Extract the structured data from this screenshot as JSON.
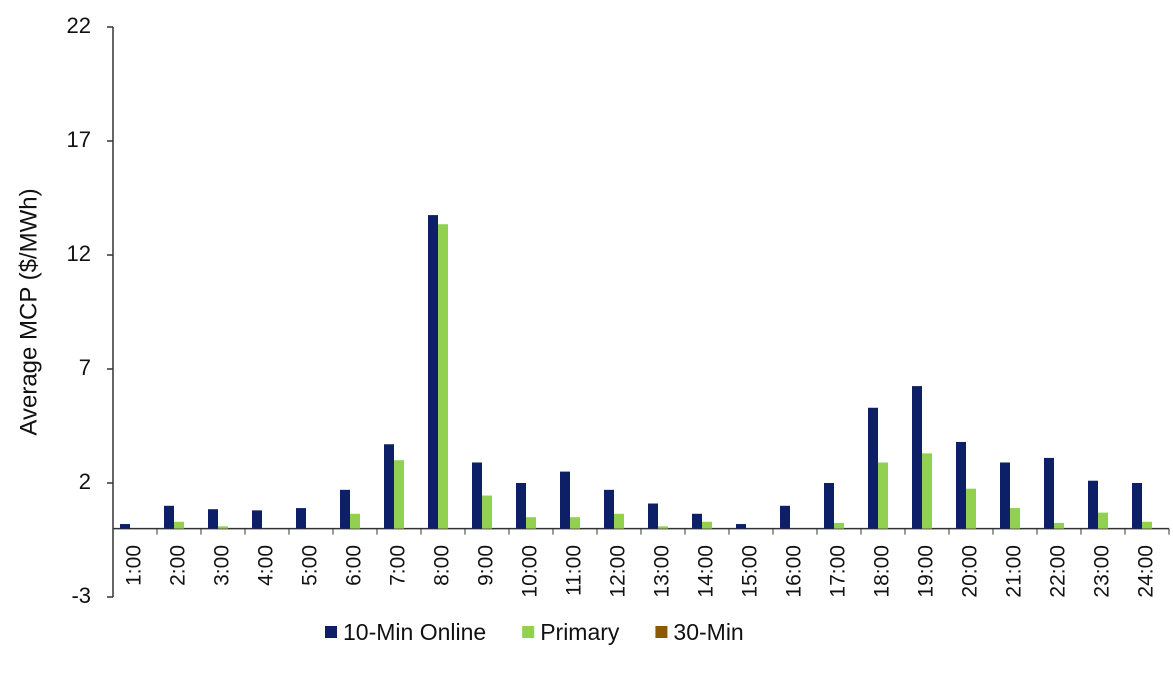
{
  "chart_data": {
    "type": "bar",
    "y_label": "Average MCP ($/MWh)",
    "categories": [
      "1:00",
      "2:00",
      "3:00",
      "4:00",
      "5:00",
      "6:00",
      "7:00",
      "8:00",
      "9:00",
      "10:00",
      "11:00",
      "12:00",
      "13:00",
      "14:00",
      "15:00",
      "16:00",
      "17:00",
      "18:00",
      "19:00",
      "20:00",
      "21:00",
      "22:00",
      "23:00",
      "24:00"
    ],
    "series": [
      {
        "name": "10-Min Online",
        "color": "#0d1f66",
        "values": [
          0.2,
          1.0,
          0.85,
          0.8,
          0.9,
          1.7,
          3.7,
          13.75,
          2.9,
          2.0,
          2.5,
          1.7,
          1.1,
          0.65,
          0.2,
          1.0,
          2.0,
          5.3,
          6.25,
          3.8,
          2.9,
          3.1,
          2.1,
          2.0
        ]
      },
      {
        "name": "Primary",
        "color": "#92d050",
        "values": [
          0,
          0.3,
          0.1,
          0,
          0,
          0.65,
          3.0,
          13.35,
          1.45,
          0.5,
          0.5,
          0.65,
          0.1,
          0.3,
          0,
          0,
          0.25,
          2.9,
          3.3,
          1.75,
          0.9,
          0.25,
          0.7,
          0.3
        ]
      },
      {
        "name": "30-Min",
        "color": "#8b5a00",
        "values": [
          0,
          0,
          0,
          0,
          0,
          0,
          0,
          0,
          0,
          0,
          0,
          0,
          0,
          0,
          0,
          0,
          0,
          0,
          0,
          0,
          0,
          0,
          0,
          0
        ]
      }
    ],
    "ylim": [
      -3,
      22
    ],
    "yticks": [
      -3,
      2,
      7,
      12,
      17,
      22
    ],
    "grid": false,
    "legend": "bottom"
  }
}
